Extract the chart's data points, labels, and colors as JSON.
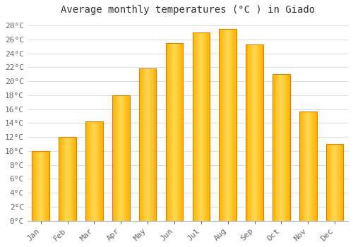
{
  "title": "Average monthly temperatures (°C ) in Giado",
  "months": [
    "Jan",
    "Feb",
    "Mar",
    "Apr",
    "May",
    "Jun",
    "Jul",
    "Aug",
    "Sep",
    "Oct",
    "Nov",
    "Dec"
  ],
  "temperatures": [
    10,
    12,
    14.2,
    18,
    21.8,
    25.5,
    27,
    27.5,
    25.3,
    21,
    15.7,
    11
  ],
  "bar_color_main": "#FFB300",
  "bar_color_light": "#FFD050",
  "bar_edge_color": "#E08000",
  "background_color": "#FFFFFF",
  "grid_color": "#DDDDDD",
  "ylim": [
    0,
    29
  ],
  "yticks": [
    0,
    2,
    4,
    6,
    8,
    10,
    12,
    14,
    16,
    18,
    20,
    22,
    24,
    26,
    28
  ],
  "title_fontsize": 10,
  "tick_fontsize": 8,
  "title_color": "#333333",
  "tick_color": "#666666",
  "bar_width": 0.65
}
